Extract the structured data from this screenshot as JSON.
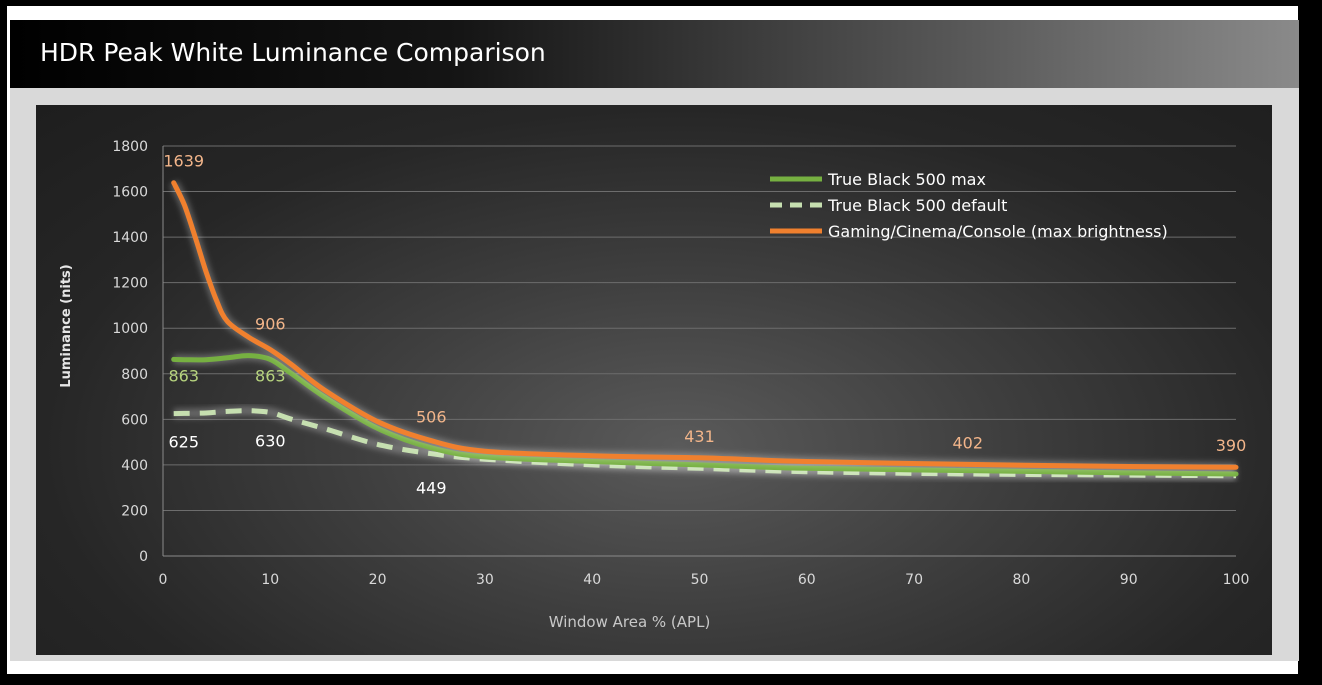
{
  "title": "HDR Peak White Luminance Comparison",
  "colors": {
    "max": "#76b041",
    "default": "#c6dfb0",
    "gaming": "#f0802e",
    "gaming_label": "#f2b58a",
    "max_label": "#b6d37e",
    "default_label": "#ffffff"
  },
  "chart_data": {
    "type": "line",
    "title": "HDR Peak White Luminance Comparison",
    "xlabel": "Window Area % (APL)",
    "ylabel": "Luminance (nits)",
    "xlim": [
      0,
      100
    ],
    "ylim": [
      0,
      1800
    ],
    "x_ticks": [
      "0",
      "10",
      "20",
      "30",
      "40",
      "50",
      "60",
      "70",
      "80",
      "90",
      "100"
    ],
    "y_ticks": [
      "0",
      "200",
      "400",
      "600",
      "800",
      "1000",
      "1200",
      "1400",
      "1600",
      "1800"
    ],
    "grid": true,
    "legend_position": "top-right",
    "series": [
      {
        "name": "True Black 500 max",
        "style": "solid",
        "x": [
          1,
          2,
          4,
          6,
          8,
          10,
          12,
          15,
          20,
          25,
          30,
          40,
          50,
          60,
          75,
          90,
          100
        ],
        "y": [
          863,
          862,
          862,
          870,
          880,
          863,
          800,
          700,
          560,
          475,
          435,
          415,
          400,
          385,
          375,
          365,
          360
        ],
        "labels": [
          {
            "x": 1,
            "y": 863,
            "text": "863"
          },
          {
            "x": 10,
            "y": 863,
            "text": "863"
          }
        ]
      },
      {
        "name": "True Black 500 default",
        "style": "dashed",
        "x": [
          1,
          2,
          4,
          6,
          8,
          10,
          12,
          15,
          20,
          25,
          30,
          40,
          50,
          60,
          75,
          90,
          100
        ],
        "y": [
          625,
          626,
          628,
          635,
          638,
          630,
          600,
          560,
          490,
          449,
          425,
          400,
          385,
          370,
          360,
          355,
          352
        ],
        "labels": [
          {
            "x": 1,
            "y": 625,
            "text": "625"
          },
          {
            "x": 10,
            "y": 630,
            "text": "630"
          },
          {
            "x": 25,
            "y": 449,
            "text": "449"
          }
        ]
      },
      {
        "name": "Gaming/Cinema/Console (max brightness)",
        "style": "solid",
        "x": [
          1,
          2,
          3,
          4,
          5,
          6,
          8,
          10,
          12,
          15,
          20,
          25,
          30,
          40,
          50,
          60,
          75,
          90,
          100
        ],
        "y": [
          1639,
          1540,
          1400,
          1250,
          1120,
          1030,
          960,
          906,
          840,
          730,
          590,
          506,
          460,
          440,
          431,
          415,
          402,
          393,
          390
        ],
        "labels": [
          {
            "x": 1,
            "y": 1639,
            "text": "1639"
          },
          {
            "x": 10,
            "y": 906,
            "text": "906"
          },
          {
            "x": 25,
            "y": 506,
            "text": "506"
          },
          {
            "x": 50,
            "y": 431,
            "text": "431"
          },
          {
            "x": 75,
            "y": 402,
            "text": "402"
          },
          {
            "x": 100,
            "y": 390,
            "text": "390"
          }
        ]
      }
    ]
  }
}
